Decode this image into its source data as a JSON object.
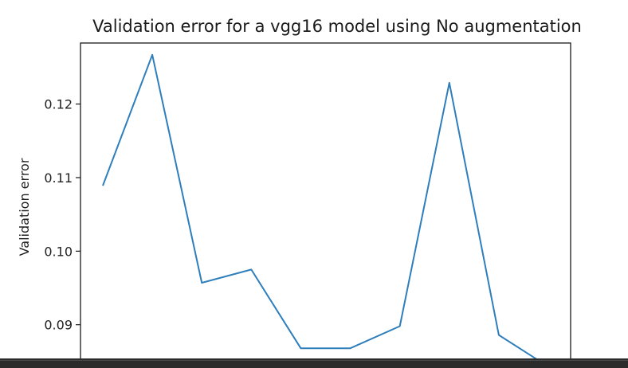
{
  "chart_data": {
    "type": "line",
    "title": "Validation error for a vgg16 model using No augmentation",
    "xlabel": "",
    "ylabel": "Validation error",
    "x": [
      0,
      1,
      2,
      3,
      4,
      5,
      6,
      7,
      8,
      9
    ],
    "series": [
      {
        "values": [
          0.1089,
          0.1267,
          0.0957,
          0.0975,
          0.0868,
          0.0868,
          0.0898,
          0.1229,
          0.0886,
          0.0843
        ]
      }
    ],
    "yticks": [
      "0.09",
      "0.10",
      "0.11",
      "0.12"
    ],
    "ytick_values": [
      0.09,
      0.1,
      0.11,
      0.12
    ],
    "ylim": [
      0.0839,
      0.1283
    ],
    "xlim": [
      -0.45,
      9.45
    ],
    "grid": false,
    "colors": {
      "line": "#2f7ebc",
      "axes": "#1a1a1a",
      "footer": "#2b2b2b"
    }
  }
}
